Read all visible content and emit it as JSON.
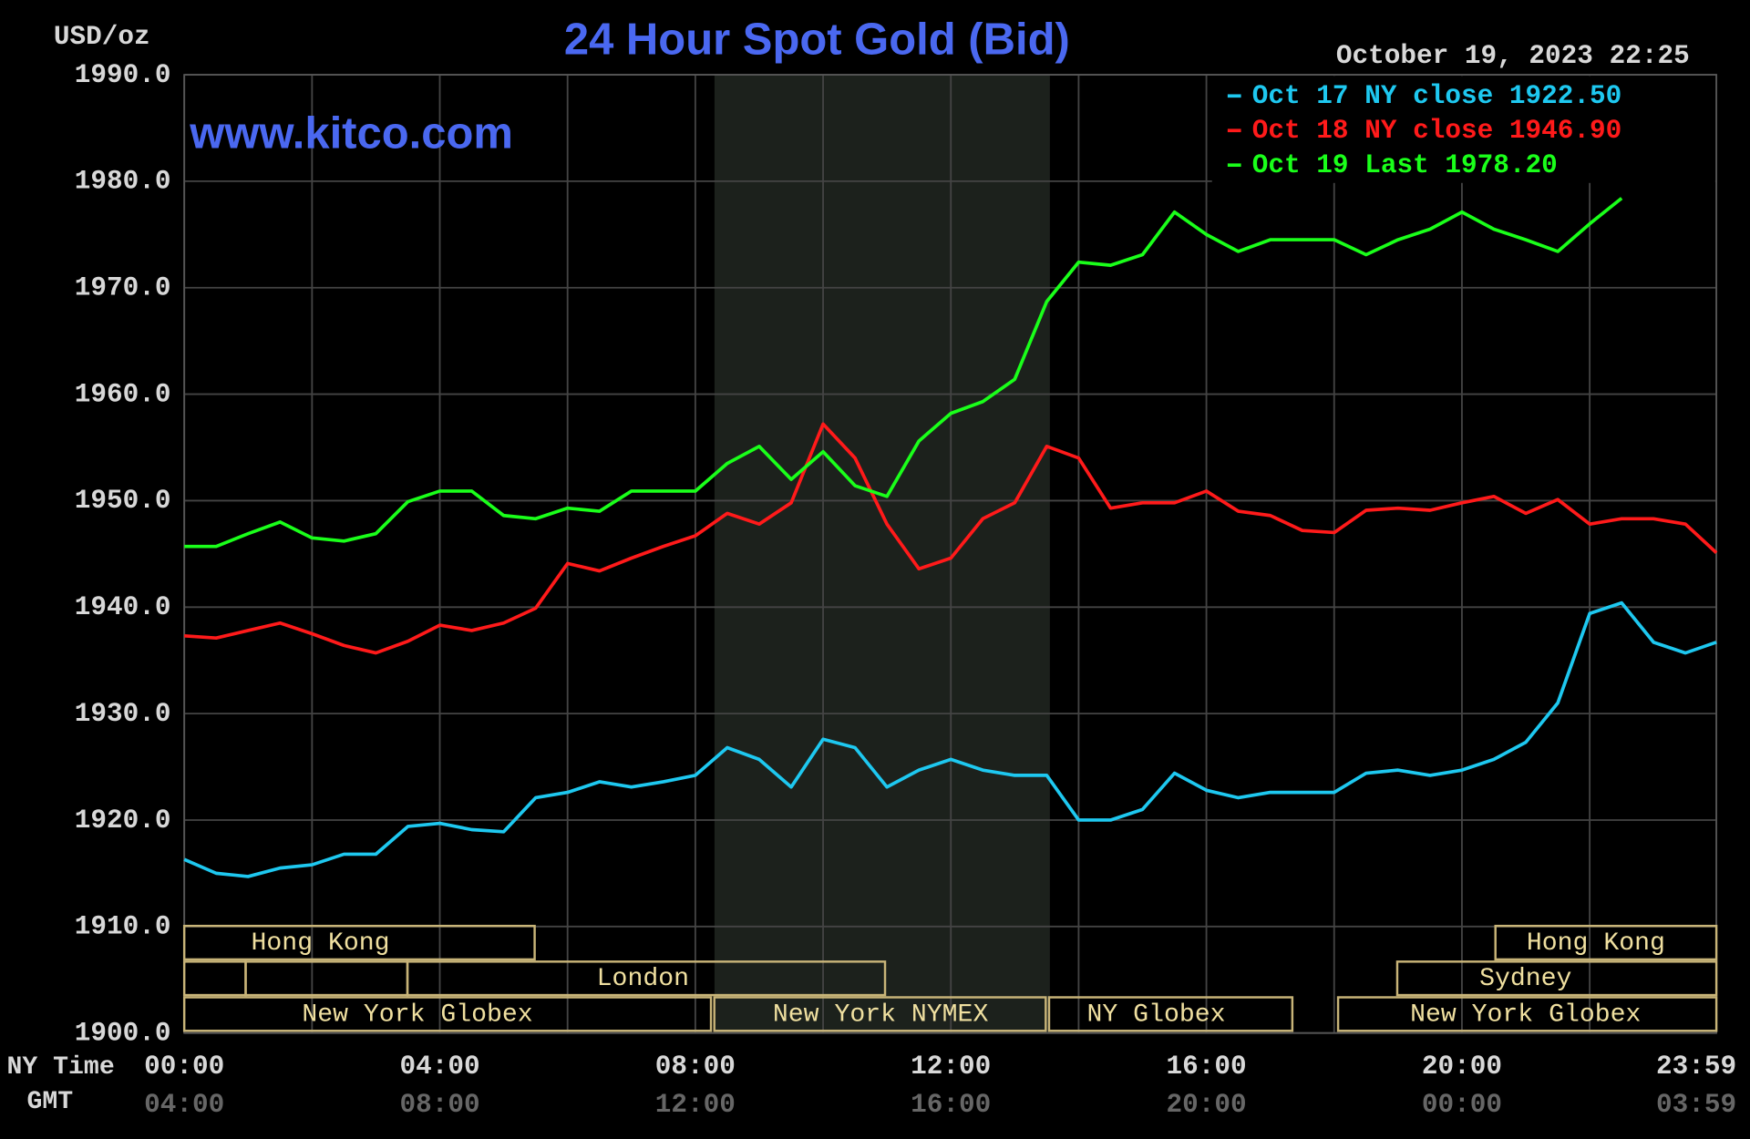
{
  "chart_data": {
    "type": "line",
    "title": "24 Hour Spot Gold (Bid)",
    "y_label": "USD/oz",
    "timestamp": "October 19, 2023 22:25",
    "watermark": "www.kitco.com",
    "x_label": "NY Time",
    "x2_label": "GMT",
    "x": [
      0,
      0.5,
      1,
      1.5,
      2,
      2.5,
      3,
      3.5,
      4,
      4.5,
      5,
      5.5,
      6,
      6.5,
      7,
      7.5,
      8,
      8.5,
      9,
      9.5,
      10,
      10.5,
      11,
      11.5,
      12,
      12.5,
      13,
      13.5,
      14,
      14.5,
      15,
      15.5,
      16,
      16.5,
      17,
      17.5,
      18,
      18.5,
      19,
      19.5,
      20,
      20.5,
      21,
      21.5,
      22,
      22.5,
      23,
      23.5,
      23.983
    ],
    "xlim": [
      0,
      23.983
    ],
    "xticks": [
      {
        "value": 0,
        "label": "00:00"
      },
      {
        "value": 4,
        "label": "04:00"
      },
      {
        "value": 8,
        "label": "08:00"
      },
      {
        "value": 12,
        "label": "12:00"
      },
      {
        "value": 16,
        "label": "16:00"
      },
      {
        "value": 20,
        "label": "20:00"
      },
      {
        "value": 23.983,
        "label": "23:59"
      }
    ],
    "x2tick_labels": [
      "04:00",
      "08:00",
      "12:00",
      "16:00",
      "20:00",
      "00:00",
      "03:59"
    ],
    "x_grid": [
      0,
      2,
      4,
      6,
      8,
      10,
      12,
      14,
      16,
      18,
      20,
      22,
      23.983
    ],
    "shaded_range": [
      8.3,
      13.55
    ],
    "ylim": [
      1900,
      1990
    ],
    "yticks": [
      {
        "value": 1900,
        "label": "1900.0"
      },
      {
        "value": 1910,
        "label": "1910.0"
      },
      {
        "value": 1920,
        "label": "1920.0"
      },
      {
        "value": 1930,
        "label": "1930.0"
      },
      {
        "value": 1940,
        "label": "1940.0"
      },
      {
        "value": 1950,
        "label": "1950.0"
      },
      {
        "value": 1960,
        "label": "1960.0"
      },
      {
        "value": 1970,
        "label": "1970.0"
      },
      {
        "value": 1980,
        "label": "1980.0"
      },
      {
        "value": 1990,
        "label": "1990.0"
      }
    ],
    "grid": true,
    "series": [
      {
        "name": "Oct 17 NY close 1922.50",
        "color": "#1ec8f0",
        "values": [
          1916.3,
          1915.0,
          1914.7,
          1915.5,
          1915.8,
          1916.8,
          1916.8,
          1919.4,
          1919.7,
          1919.1,
          1918.9,
          1922.1,
          1922.6,
          1923.6,
          1923.1,
          1923.6,
          1924.2,
          1926.8,
          1925.7,
          1923.1,
          1927.6,
          1926.8,
          1923.1,
          1924.7,
          1925.7,
          1924.7,
          1924.2,
          1924.2,
          1920.0,
          1920.0,
          1921.0,
          1924.4,
          1922.8,
          1922.1,
          1922.6,
          1922.6,
          1922.6,
          1924.4,
          1924.7,
          1924.2,
          1924.7,
          1925.7,
          1927.3,
          1931.0,
          1939.4,
          1940.4,
          1936.7,
          1935.7,
          1936.7
        ]
      },
      {
        "name": "Oct 18 NY close 1946.90",
        "color": "#ff1a1a",
        "values": [
          1937.3,
          1937.1,
          1937.8,
          1938.5,
          1937.5,
          1936.4,
          1935.7,
          1936.8,
          1938.3,
          1937.8,
          1938.5,
          1939.9,
          1944.1,
          1943.4,
          1944.6,
          1945.7,
          1946.7,
          1948.8,
          1947.8,
          1949.8,
          1957.2,
          1954.0,
          1947.8,
          1943.6,
          1944.6,
          1948.3,
          1949.8,
          1955.1,
          1954.0,
          1949.3,
          1949.8,
          1949.8,
          1950.9,
          1949.0,
          1948.6,
          1947.2,
          1947.0,
          1949.1,
          1949.3,
          1949.1,
          1949.8,
          1950.4,
          1948.8,
          1950.1,
          1947.8,
          1948.3,
          1948.3,
          1947.8,
          1945.1
        ]
      },
      {
        "name": "Oct 19 Last 1978.20",
        "color": "#1aff1a",
        "values": [
          1945.7,
          1945.7,
          1946.9,
          1948.0,
          1946.5,
          1946.2,
          1946.9,
          1949.9,
          1950.9,
          1950.9,
          1948.6,
          1948.3,
          1949.3,
          1949.0,
          1950.9,
          1950.9,
          1950.9,
          1953.5,
          1955.1,
          1952.0,
          1954.6,
          1951.4,
          1950.4,
          1955.6,
          1958.2,
          1959.3,
          1961.4,
          1968.7,
          1972.4,
          1972.1,
          1973.1,
          1977.1,
          1975.0,
          1973.4,
          1974.5,
          1974.5,
          1974.5,
          1973.1,
          1974.5,
          1975.5,
          1977.1,
          1975.5,
          1974.5,
          1973.4,
          1976.0,
          1978.4,
          null,
          null,
          null
        ]
      }
    ],
    "sessions": [
      "Hong Kong",
      "Hong Kong",
      "London",
      "Sydney",
      "New York Globex",
      "New York NYMEX",
      "NY Globex",
      "New York Globex"
    ]
  }
}
